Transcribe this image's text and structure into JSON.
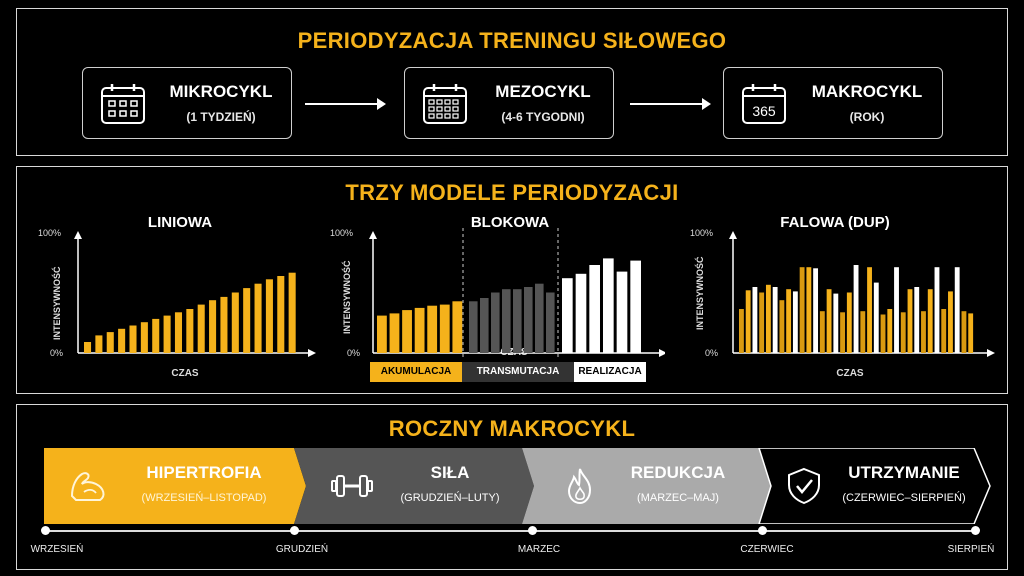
{
  "header": {
    "title": "PERIODYZACJA TRENINGU SIŁOWEGO"
  },
  "cycles": [
    {
      "name": "MIKROCYKL",
      "sub": "(1 TYDZIEŃ)",
      "icon": "calendar-week-icon"
    },
    {
      "name": "MEZOCYKL",
      "sub": "(4-6 TYGODNI)",
      "icon": "calendar-month-icon"
    },
    {
      "name": "MAKROCYKL",
      "sub": "(ROK)",
      "icon": "calendar-365-icon",
      "icon_text": "365"
    }
  ],
  "models": {
    "title": "TRZY MODELE PERIODYZACJI",
    "y_top": "100%",
    "y_bottom": "0%",
    "y_axis_title": "INTENSYWNOŚĆ",
    "x_axis_title": "CZAS",
    "colors": {
      "accent": "#f5b21b",
      "gray": "#555555",
      "white": "#ffffff"
    }
  },
  "chart_data": [
    {
      "type": "bar",
      "title": "LINIOWA",
      "xlabel": "CZAS",
      "ylabel": "INTENSYWNOŚĆ",
      "ylim": [
        0,
        100
      ],
      "values": [
        10,
        16,
        19,
        22,
        25,
        28,
        31,
        34,
        37,
        40,
        44,
        48,
        51,
        55,
        59,
        63,
        67,
        70,
        73
      ]
    },
    {
      "type": "bar",
      "title": "BLOKOWA",
      "xlabel": "CZAS",
      "ylabel": "INTENSYWNOŚĆ",
      "ylim": [
        0,
        100
      ],
      "phases": [
        {
          "name": "AKUMULACJA",
          "values": [
            34,
            36,
            39,
            41,
            43,
            44,
            47
          ]
        },
        {
          "name": "TRANSMUTACJA",
          "values": [
            47,
            50,
            55,
            58,
            58,
            60,
            63,
            55
          ]
        },
        {
          "name": "REALIZACJA",
          "values": [
            68,
            72,
            80,
            86,
            74,
            84
          ]
        }
      ]
    },
    {
      "type": "bar",
      "title": "FALOWA (DUP)",
      "xlabel": "CZAS",
      "ylabel": "INTENSYWNOŚĆ",
      "ylim": [
        0,
        100
      ],
      "pattern": [
        "light",
        "medium",
        "heavy"
      ],
      "values": [
        40,
        57,
        60,
        55,
        62,
        60,
        48,
        58,
        56,
        78,
        78,
        77,
        38,
        58,
        54,
        37,
        55,
        80,
        38,
        78,
        64,
        35,
        40,
        78,
        37,
        58,
        60,
        38,
        58,
        78,
        40,
        56,
        78,
        38,
        36
      ]
    }
  ],
  "macro": {
    "title": "ROCZNY MAKROCYKL",
    "phases": [
      {
        "name": "HIPERTROFIA",
        "sub": "(WRZESIEŃ–LISTOPAD)",
        "icon": "flexed-arm-icon"
      },
      {
        "name": "SIŁA",
        "sub": "(GRUDZIEŃ–LUTY)",
        "icon": "dumbbell-icon"
      },
      {
        "name": "REDUKCJA",
        "sub": "(MARZEC–MAJ)",
        "icon": "flame-icon"
      },
      {
        "name": "UTRZYMANIE",
        "sub": "(CZERWIEC–SIERPIEŃ)",
        "icon": "shield-check-icon"
      }
    ],
    "timeline": [
      "WRZESIEŃ",
      "GRUDZIEŃ",
      "MARZEC",
      "CZERWIEC",
      "SIERPIEŃ"
    ]
  }
}
